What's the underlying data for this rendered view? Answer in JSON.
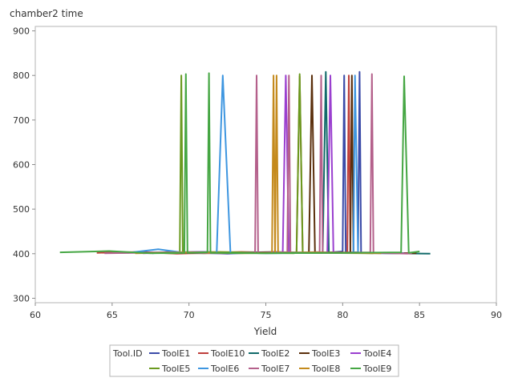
{
  "chart_data": {
    "type": "line",
    "title": "chamber2 time",
    "xlabel": "Yield",
    "ylabel": "",
    "xlim": [
      60,
      90
    ],
    "ylim": [
      290,
      910
    ],
    "xticks": [
      60,
      65,
      70,
      75,
      80,
      85,
      90
    ],
    "yticks": [
      300,
      400,
      500,
      600,
      700,
      800,
      900
    ],
    "grid": false,
    "legend_title": "Tool.ID",
    "legend_position": "bottom",
    "series": [
      {
        "name": "ToolE1",
        "color": "#3b4ba8",
        "points": [
          [
            67.6,
            401
          ],
          [
            68.6,
            404
          ],
          [
            72.5,
            400
          ],
          [
            74.9,
            403
          ],
          [
            78.8,
            402
          ],
          [
            80.0,
            405
          ],
          [
            80.1,
            800
          ],
          [
            80.2,
            403
          ],
          [
            81.0,
            403
          ],
          [
            81.1,
            808
          ],
          [
            81.2,
            402
          ],
          [
            84.0,
            401
          ]
        ]
      },
      {
        "name": "ToolE10",
        "color": "#bf3f3b",
        "points": [
          [
            64.0,
            402
          ],
          [
            66.8,
            404
          ],
          [
            69.2,
            400
          ],
          [
            73.4,
            404
          ],
          [
            77.0,
            402
          ],
          [
            77.2,
            798
          ],
          [
            77.4,
            402
          ],
          [
            80.3,
            403
          ],
          [
            80.4,
            800
          ],
          [
            80.5,
            402
          ],
          [
            84.5,
            401
          ]
        ]
      },
      {
        "name": "ToolE2",
        "color": "#116a6a",
        "points": [
          [
            65.5,
            402
          ],
          [
            70.8,
            404
          ],
          [
            75.0,
            401
          ],
          [
            78.7,
            402
          ],
          [
            78.9,
            808
          ],
          [
            79.1,
            402
          ],
          [
            83.0,
            401
          ],
          [
            85.7,
            400
          ]
        ]
      },
      {
        "name": "ToolE3",
        "color": "#5b2f0c",
        "points": [
          [
            66.5,
            403
          ],
          [
            71.0,
            401
          ],
          [
            75.6,
            404
          ],
          [
            77.8,
            402
          ],
          [
            78.0,
            800
          ],
          [
            78.2,
            403
          ],
          [
            80.5,
            402
          ],
          [
            80.6,
            800
          ],
          [
            80.7,
            402
          ],
          [
            84.8,
            401
          ]
        ]
      },
      {
        "name": "ToolE4",
        "color": "#9a3fcf",
        "points": [
          [
            67.0,
            401
          ],
          [
            70.5,
            404
          ],
          [
            74.2,
            402
          ],
          [
            76.1,
            403
          ],
          [
            76.3,
            800
          ],
          [
            76.5,
            402
          ],
          [
            79.0,
            403
          ],
          [
            79.2,
            800
          ],
          [
            79.4,
            402
          ],
          [
            83.5,
            401
          ]
        ]
      },
      {
        "name": "ToolE5",
        "color": "#6a9a1f",
        "points": [
          [
            65.0,
            403
          ],
          [
            69.0,
            401
          ],
          [
            69.4,
            402
          ],
          [
            69.5,
            800
          ],
          [
            69.6,
            402
          ],
          [
            72.0,
            404
          ],
          [
            76.8,
            401
          ],
          [
            77.0,
            402
          ],
          [
            77.2,
            803
          ],
          [
            77.4,
            402
          ],
          [
            82.0,
            401
          ]
        ]
      },
      {
        "name": "ToolE6",
        "color": "#3e96e0",
        "points": [
          [
            66.0,
            402
          ],
          [
            68.0,
            410
          ],
          [
            69.5,
            403
          ],
          [
            71.8,
            401
          ],
          [
            72.2,
            800
          ],
          [
            72.7,
            401
          ],
          [
            76.0,
            403
          ],
          [
            80.7,
            402
          ],
          [
            80.8,
            800
          ],
          [
            81.0,
            402
          ],
          [
            84.0,
            401
          ]
        ]
      },
      {
        "name": "ToolE7",
        "color": "#b4608b",
        "points": [
          [
            64.5,
            401
          ],
          [
            68.5,
            403
          ],
          [
            72.0,
            401
          ],
          [
            74.3,
            402
          ],
          [
            74.4,
            800
          ],
          [
            74.5,
            402
          ],
          [
            76.4,
            403
          ],
          [
            76.5,
            800
          ],
          [
            76.6,
            402
          ],
          [
            78.5,
            404
          ],
          [
            78.6,
            800
          ],
          [
            78.7,
            402
          ],
          [
            81.8,
            403
          ],
          [
            81.9,
            803
          ],
          [
            82.0,
            402
          ],
          [
            84.5,
            400
          ]
        ]
      },
      {
        "name": "ToolE8",
        "color": "#c48a1c",
        "points": [
          [
            66.5,
            401
          ],
          [
            70.0,
            403
          ],
          [
            73.5,
            401
          ],
          [
            75.4,
            402
          ],
          [
            75.5,
            800
          ],
          [
            75.6,
            403
          ],
          [
            75.7,
            800
          ],
          [
            75.8,
            402
          ],
          [
            78.0,
            403
          ],
          [
            82.5,
            401
          ]
        ]
      },
      {
        "name": "ToolE9",
        "color": "#45a643",
        "points": [
          [
            61.6,
            403
          ],
          [
            64.8,
            406
          ],
          [
            67.5,
            401
          ],
          [
            69.7,
            402
          ],
          [
            69.8,
            803
          ],
          [
            69.9,
            402
          ],
          [
            71.2,
            403
          ],
          [
            71.3,
            805
          ],
          [
            71.4,
            402
          ],
          [
            74.6,
            401
          ],
          [
            79.9,
            402
          ],
          [
            83.8,
            403
          ],
          [
            84.0,
            798
          ],
          [
            84.3,
            402
          ],
          [
            85.0,
            405
          ]
        ]
      }
    ]
  }
}
